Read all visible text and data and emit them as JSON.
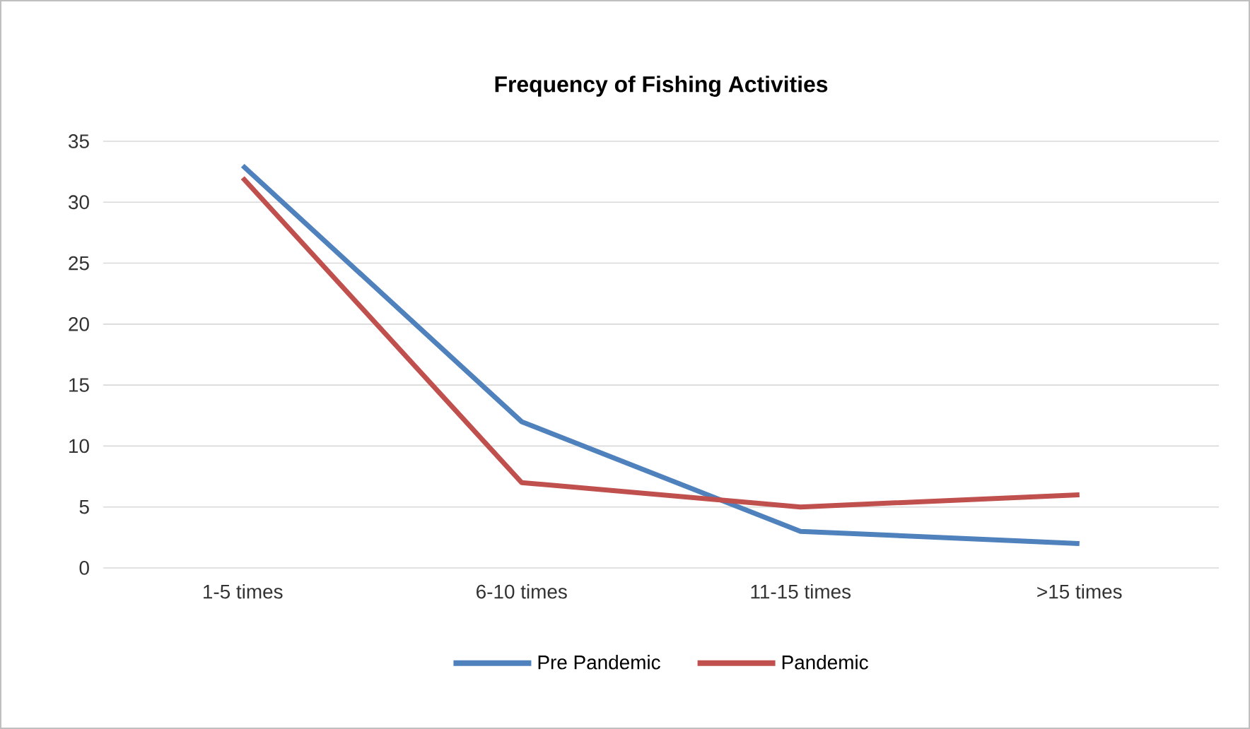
{
  "chart_data": {
    "type": "line",
    "title": "Frequency of Fishing Activities",
    "categories": [
      "1-5 times",
      "6-10 times",
      "11-15 times",
      ">15 times"
    ],
    "series": [
      {
        "name": "Pre Pandemic",
        "color": "#4f81bd",
        "values": [
          33,
          12,
          3,
          2
        ]
      },
      {
        "name": "Pandemic",
        "color": "#c0504d",
        "values": [
          32,
          7,
          5,
          6
        ]
      }
    ],
    "ylim": [
      0,
      35
    ],
    "yticks": [
      0,
      5,
      10,
      15,
      20,
      25,
      30,
      35
    ],
    "grid": "y",
    "legend": "bottom"
  }
}
